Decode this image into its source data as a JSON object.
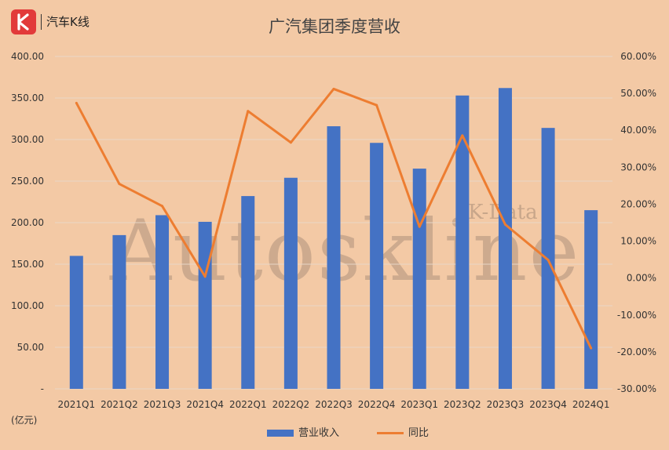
{
  "brand": {
    "logo_letter": "K",
    "name": "汽车K线"
  },
  "watermark": {
    "main": "Autoskline",
    "sub": "K-Data"
  },
  "unit_label": "(亿元)",
  "colors": {
    "background": "#f3c9a5",
    "bar": "#4472c4",
    "line": "#ed7d31",
    "logo": "#e23a3a"
  },
  "chart_data": {
    "type": "bar",
    "title": "广汽集团季度营收",
    "categories": [
      "2021Q1",
      "2021Q2",
      "2021Q3",
      "2021Q4",
      "2022Q1",
      "2022Q2",
      "2022Q3",
      "2022Q4",
      "2023Q1",
      "2023Q2",
      "2023Q3",
      "2023Q4",
      "2024Q1"
    ],
    "series": [
      {
        "name": "营业收入",
        "type": "bar",
        "axis": "left",
        "values": [
          160,
          185,
          209,
          201,
          232,
          254,
          316,
          296,
          265,
          353,
          362,
          314,
          215
        ]
      },
      {
        "name": "同比",
        "type": "line",
        "axis": "right",
        "values": [
          0.474,
          0.255,
          0.195,
          0.004,
          0.452,
          0.367,
          0.512,
          0.468,
          0.139,
          0.386,
          0.145,
          0.049,
          -0.19
        ]
      }
    ],
    "y_left": {
      "min": 0,
      "max": 400,
      "ticks": [
        0,
        50,
        100,
        150,
        200,
        250,
        300,
        350,
        400
      ],
      "tick_labels": [
        "-",
        "50.00",
        "100.00",
        "150.00",
        "200.00",
        "250.00",
        "300.00",
        "350.00",
        "400.00"
      ]
    },
    "y_right": {
      "min": -0.3,
      "max": 0.6,
      "ticks": [
        -0.3,
        -0.2,
        -0.1,
        0,
        0.1,
        0.2,
        0.3,
        0.4,
        0.5,
        0.6
      ],
      "tick_labels": [
        "-30.00%",
        "-20.00%",
        "-10.00%",
        "0.00%",
        "10.00%",
        "20.00%",
        "30.00%",
        "40.00%",
        "50.00%",
        "60.00%"
      ]
    },
    "grid": true,
    "legend": "bottom"
  }
}
